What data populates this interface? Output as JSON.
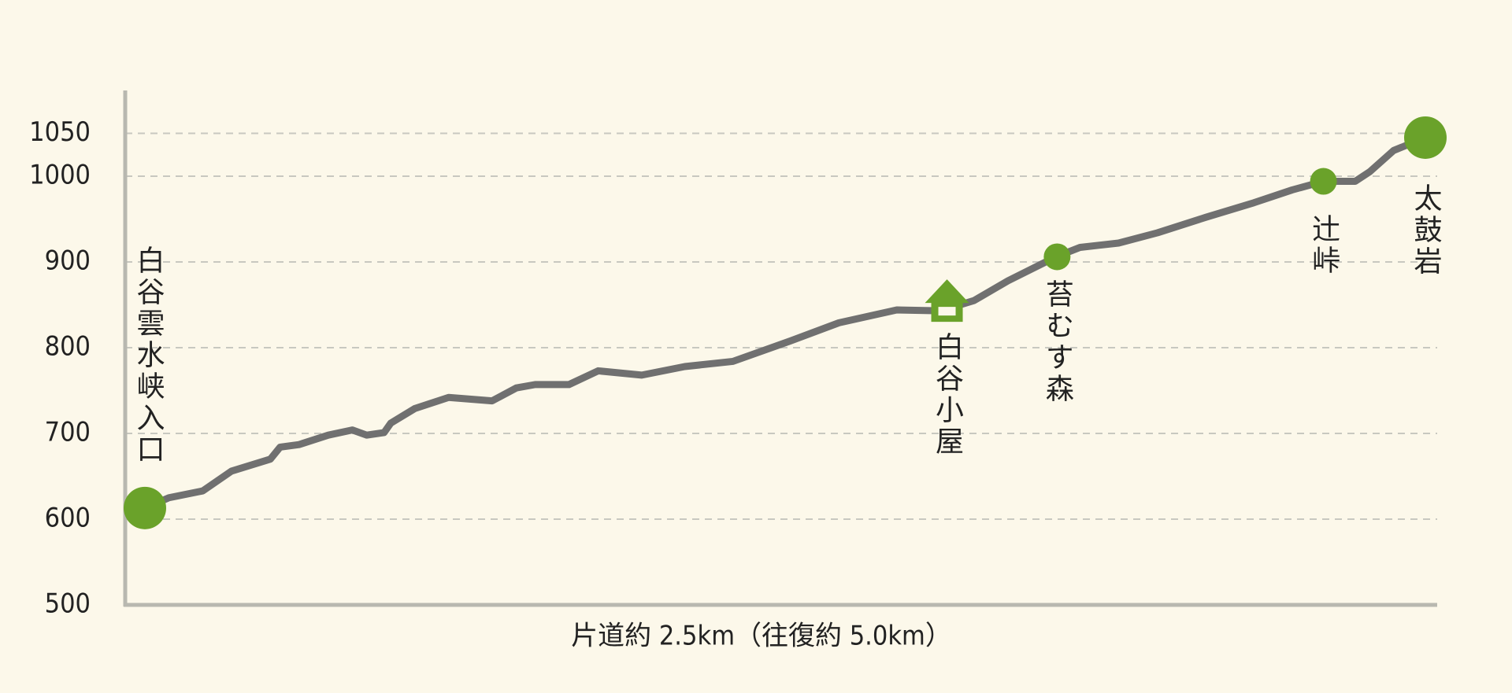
{
  "chart_data": {
    "type": "line",
    "x_label": "片道約 2.5km（往復約 5.0km）",
    "xlim": [
      0,
      2.5
    ],
    "ylim": [
      500,
      1100
    ],
    "yticks": [
      500,
      600,
      700,
      800,
      900,
      1000,
      1050
    ],
    "grid": true,
    "series": [
      {
        "color": "#707070",
        "x": [
          0,
          0.047,
          0.113,
          0.169,
          0.207,
          0.245,
          0.264,
          0.301,
          0.358,
          0.405,
          0.433,
          0.467,
          0.48,
          0.527,
          0.593,
          0.678,
          0.725,
          0.762,
          0.828,
          0.885,
          0.97,
          1.054,
          1.148,
          1.261,
          1.355,
          1.468,
          1.553,
          1.619,
          1.685,
          1.779,
          1.826,
          1.901,
          1.977,
          2.071,
          2.165,
          2.24,
          2.301,
          2.363,
          2.391,
          2.438,
          2.5
        ],
        "values": [
          613,
          625,
          633,
          656,
          663,
          670,
          684,
          687,
          698,
          704,
          698,
          701,
          712,
          729,
          742,
          738,
          753,
          757,
          757,
          773,
          768,
          778,
          784,
          808,
          829,
          844,
          843,
          855,
          878,
          906,
          917,
          922,
          934,
          952,
          969,
          984,
          994,
          994,
          1005,
          1030,
          1045
        ]
      }
    ],
    "marker_color": "#6aa22a",
    "annotations": [
      {
        "label": "白谷雲水峡入口",
        "x": 0,
        "y": 613
      },
      {
        "label": "白谷小屋",
        "x": 1.566,
        "y": 843
      },
      {
        "label": "苔むす森",
        "x": 1.781,
        "y": 906
      },
      {
        "label": "辻峠",
        "x": 2.301,
        "y": 994
      },
      {
        "label": "太鼓岩",
        "x": 2.5,
        "y": 1045
      }
    ]
  }
}
